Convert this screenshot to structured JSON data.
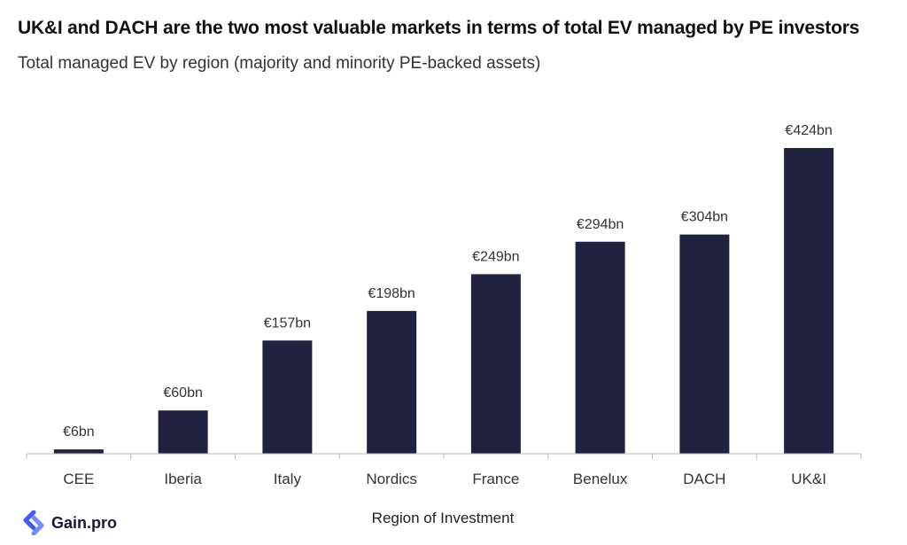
{
  "chart_data": {
    "type": "bar",
    "title": "UK&I and DACH are the two most valuable markets in terms of total EV managed by PE investors",
    "subtitle": "Total managed EV by region (majority and minority PE-backed assets)",
    "xlabel": "Region of Investment",
    "ylabel": "",
    "categories": [
      "CEE",
      "Iberia",
      "Italy",
      "Nordics",
      "France",
      "Benelux",
      "DACH",
      "UK&I"
    ],
    "values": [
      6,
      60,
      157,
      198,
      249,
      294,
      304,
      424
    ],
    "value_labels": [
      "€6bn",
      "€60bn",
      "€157bn",
      "€198bn",
      "€249bn",
      "€294bn",
      "€304bn",
      "€424bn"
    ],
    "unit": "€bn",
    "ylim": [
      0,
      424
    ],
    "grid": false,
    "legend": "none",
    "bar_color": "#20223f"
  },
  "branding": {
    "logo_text": "Gain.pro",
    "logo_color": "#3d5cf0"
  }
}
